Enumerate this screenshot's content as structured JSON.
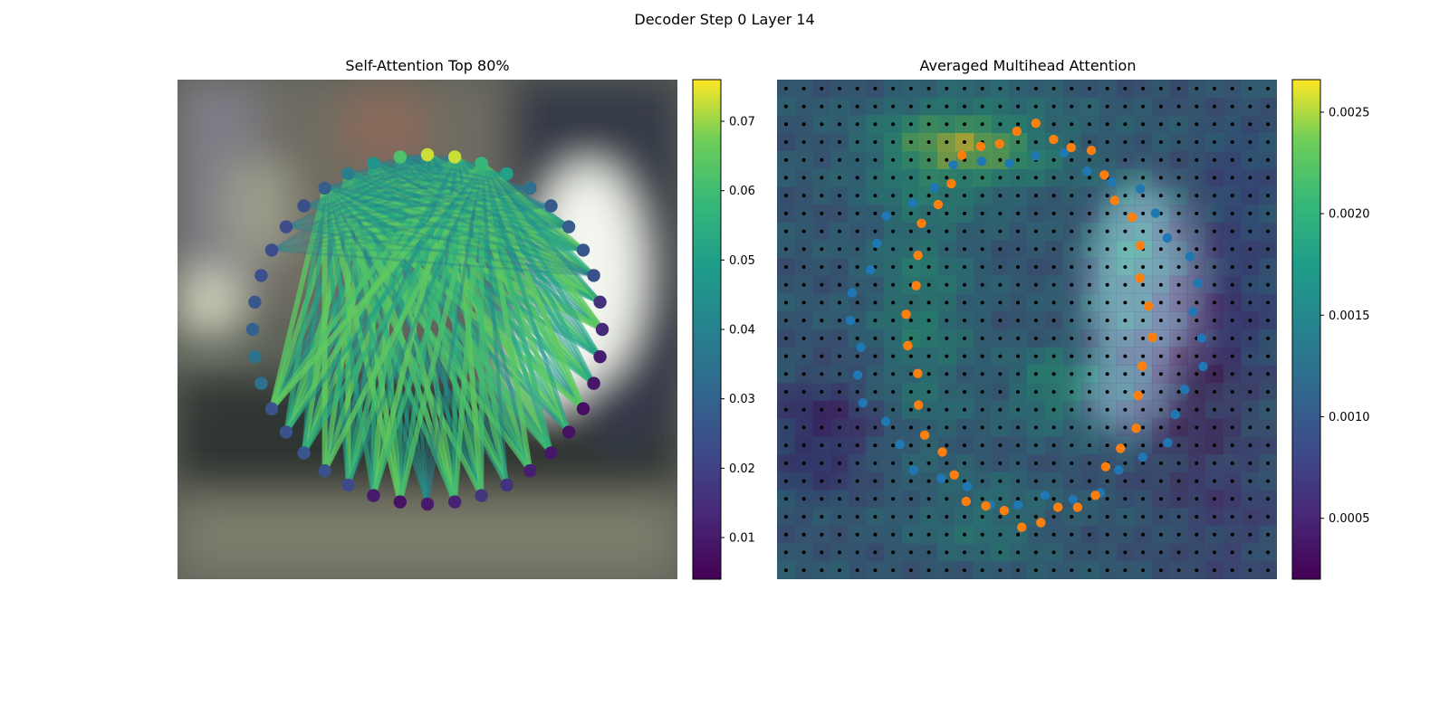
{
  "figure": {
    "title": "Decoder Step 0 Layer 14"
  },
  "chart_data": [
    {
      "type": "network",
      "title": "Self-Attention Top 80%",
      "node_count": 40,
      "node_values": [
        0.073,
        0.073,
        0.058,
        0.05,
        0.034,
        0.027,
        0.028,
        0.026,
        0.024,
        0.016,
        0.014,
        0.011,
        0.009,
        0.007,
        0.008,
        0.009,
        0.011,
        0.016,
        0.017,
        0.012,
        0.01,
        0.008,
        0.01,
        0.022,
        0.024,
        0.026,
        0.025,
        0.025,
        0.034,
        0.035,
        0.03,
        0.026,
        0.024,
        0.023,
        0.023,
        0.024,
        0.028,
        0.039,
        0.046,
        0.062
      ],
      "colorbar": {
        "ticks": [
          0.01,
          0.02,
          0.03,
          0.04,
          0.05,
          0.06,
          0.07
        ],
        "tick_labels": [
          "0.01",
          "0.02",
          "0.03",
          "0.04",
          "0.05",
          "0.06",
          "0.07"
        ],
        "range": [
          0.004,
          0.076
        ],
        "colormap": "viridis"
      }
    },
    {
      "type": "heatmap",
      "title": "Averaged Multihead Attention",
      "grid": [
        28,
        28
      ],
      "colorbar": {
        "ticks": [
          0.0005,
          0.001,
          0.0015,
          0.002,
          0.0025
        ],
        "tick_labels": [
          "0.0005",
          "0.0010",
          "0.0015",
          "0.0020",
          "0.0025"
        ],
        "range": [
          0.0002,
          0.00266
        ],
        "colormap": "viridis"
      },
      "series": [
        {
          "color": "#1f77b4",
          "point_count": 40
        },
        {
          "color": "#ff7f0e",
          "point_count": 40
        }
      ]
    }
  ],
  "colors": {
    "blue_points": "#1f77b4",
    "orange_points": "#ff7f0e",
    "grid_dots": "#000000"
  }
}
